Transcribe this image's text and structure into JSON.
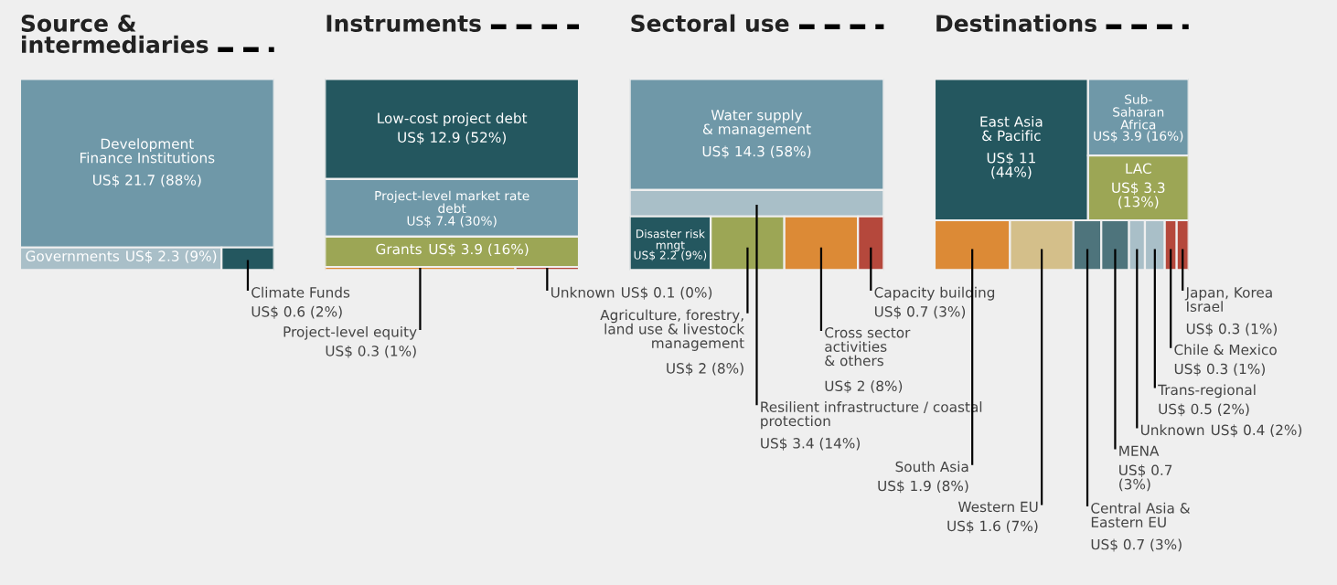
{
  "chart_data": [
    {
      "type": "other",
      "title": "Source &\nintermediaries",
      "categories": [
        "Development\nFinance Institutions",
        "Governments",
        "Climate Funds"
      ],
      "values": [
        21.7,
        2.3,
        0.6
      ],
      "colors": [
        "#6f98a8",
        "#a9bfc8",
        "#24575f"
      ],
      "value_labels": [
        "US$ 21.7 (88%)",
        "US$ 2.3 (9%)",
        "US$ 0.6 (2%)"
      ]
    },
    {
      "type": "other",
      "title": "Instruments",
      "categories": [
        "Low-cost project debt",
        "Project-level market rate\ndebt",
        "Grants",
        "Project-level equity",
        "Unknown"
      ],
      "values": [
        12.9,
        7.4,
        3.9,
        0.3,
        0.1
      ],
      "colors": [
        "#24575f",
        "#6f98a8",
        "#9ca655",
        "#dc8a36",
        "#b5483c"
      ],
      "value_labels": [
        "US$ 12.9 (52%)",
        "US$ 7.4 (30%)",
        "US$ 3.9 (16%)",
        "US$ 0.3 (1%)",
        "US$ 0.1 (0%)"
      ]
    },
    {
      "type": "other",
      "title": "Sectoral use",
      "categories": [
        "Water supply\n& management",
        "Resilient infrastructure / coastal\nprotection",
        "Disaster risk\nmngt",
        "Agriculture, forestry,\nland use & livestock\nmanagement",
        "Cross sector\nactivities\n& others",
        "Capacity building"
      ],
      "values": [
        14.3,
        3.4,
        2.2,
        2,
        2,
        0.7
      ],
      "colors": [
        "#6f98a8",
        "#a9bfc8",
        "#24575f",
        "#9ca655",
        "#dc8a36",
        "#b5483c"
      ],
      "value_labels": [
        "US$ 14.3 (58%)",
        "US$ 3.4 (14%)",
        "US$ 2.2 (9%)",
        "US$ 2 (8%)",
        "US$ 2 (8%)",
        "US$ 0.7 (3%)"
      ]
    },
    {
      "type": "other",
      "title": "Destinations",
      "categories": [
        "East Asia\n& Pacific",
        "Sub-\nSaharan\nAfrica",
        "LAC",
        "South Asia",
        "Western EU",
        "Central Asia &\nEastern EU",
        "MENA",
        "Unknown",
        "Trans-regional",
        "Chile & Mexico",
        "Japan, Korea\nIsrael"
      ],
      "values": [
        11,
        3.9,
        3.3,
        1.9,
        1.6,
        0.7,
        0.7,
        0.4,
        0.5,
        0.3,
        0.3
      ],
      "colors": [
        "#24575f",
        "#6f98a8",
        "#9ca655",
        "#dc8a36",
        "#d4bf8a",
        "#4e747c",
        "#4e747c",
        "#a9bfc8",
        "#a9bfc8",
        "#b5483c",
        "#b5483c"
      ],
      "value_labels": [
        "US$ 11\n(44%)",
        "US$ 3.9 (16%)",
        "US$ 3.3\n(13%)",
        "US$ 1.9 (8%)",
        "US$ 1.6 (7%)",
        "US$ 0.7 (3%)",
        "US$ 0.7\n(3%)",
        "US$ 0.4 (2%)",
        "US$ 0.5 (2%)",
        "US$ 0.3 (1%)",
        "US$ 0.3 (1%)"
      ]
    }
  ]
}
